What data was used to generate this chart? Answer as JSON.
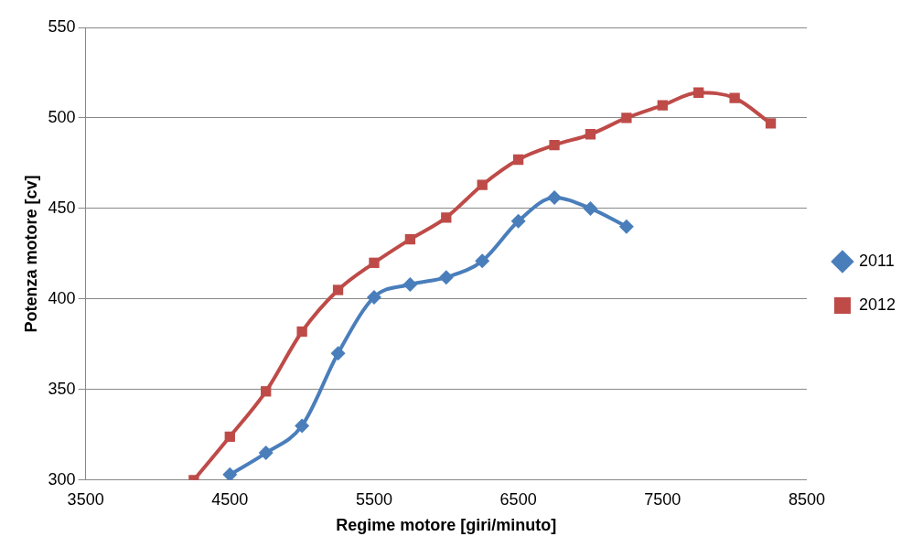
{
  "chart_data": {
    "type": "line",
    "xlabel": "Regime motore [giri/minuto]",
    "ylabel": "Potenza motore [cv]",
    "xlim": [
      3500,
      8500
    ],
    "xticks": [
      3500,
      4500,
      5500,
      6500,
      7500,
      8500
    ],
    "ylim": [
      300,
      550
    ],
    "yticks": [
      300,
      350,
      400,
      450,
      500,
      550
    ],
    "grid": "y",
    "legend": "right",
    "series": [
      {
        "name": "2011",
        "color": "#4a7ebb",
        "marker": "diamond",
        "x": [
          4500,
          4750,
          5000,
          5250,
          5500,
          5750,
          6000,
          6250,
          6500,
          6750,
          7000,
          7250
        ],
        "values": [
          303,
          315,
          330,
          370,
          401,
          408,
          412,
          421,
          443,
          456,
          450,
          440
        ]
      },
      {
        "name": "2012",
        "color": "#be4b48",
        "marker": "square",
        "x": [
          4250,
          4500,
          4750,
          5000,
          5250,
          5500,
          5750,
          6000,
          6250,
          6500,
          6750,
          7000,
          7250,
          7500,
          7750,
          8000,
          8250
        ],
        "values": [
          300,
          324,
          349,
          382,
          405,
          420,
          433,
          445,
          463,
          477,
          485,
          491,
          500,
          507,
          514,
          511,
          497
        ]
      }
    ]
  }
}
